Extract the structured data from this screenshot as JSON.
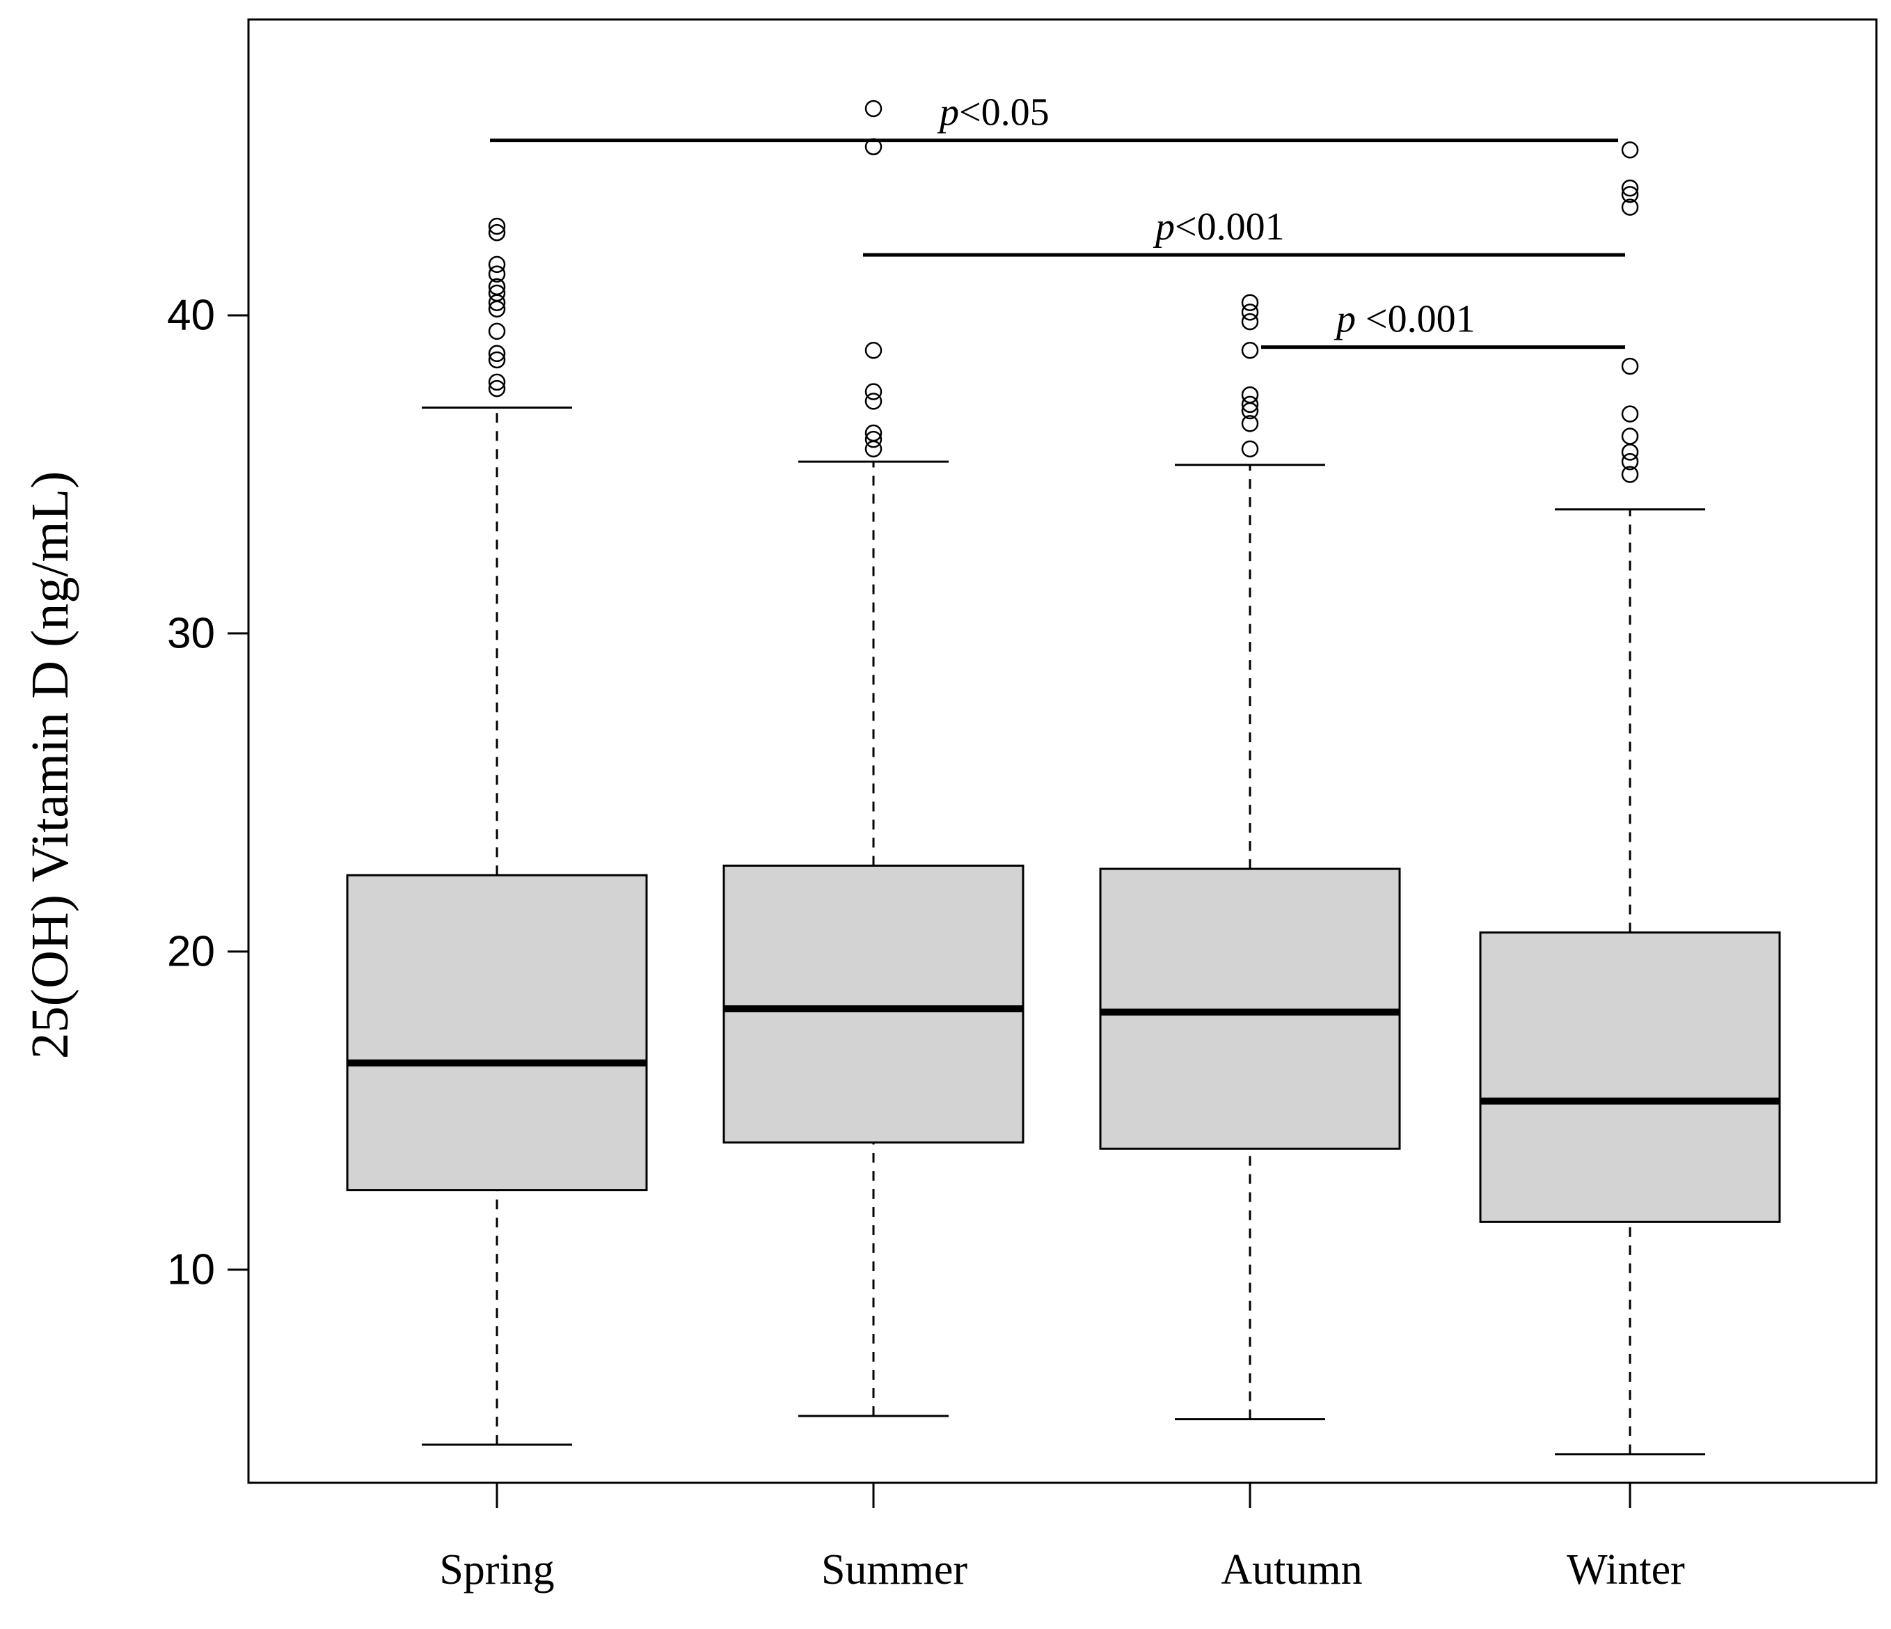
{
  "chart_data": {
    "type": "box",
    "title": "",
    "xlabel": "",
    "ylabel": "25(OH) Vitamin D (ng/mL)",
    "ylim": [
      3.3,
      49.3
    ],
    "yticks": [
      10,
      20,
      30,
      40
    ],
    "yticklabels": [
      "10",
      "20",
      "30",
      "40"
    ],
    "categories": [
      "Spring",
      "Summer",
      "Autumn",
      "Winter"
    ],
    "boxes": [
      {
        "name": "Spring",
        "whisker_low": 4.5,
        "q1": 12.5,
        "median": 16.5,
        "q3": 22.4,
        "whisker_high": 37.1,
        "outliers": [
          37.7,
          37.9,
          38.6,
          38.8,
          39.5,
          40.2,
          40.4,
          40.7,
          40.9,
          41.3,
          41.6,
          42.6,
          42.8
        ]
      },
      {
        "name": "Summer",
        "whisker_low": 5.4,
        "q1": 14.0,
        "median": 18.2,
        "q3": 22.7,
        "whisker_high": 35.4,
        "outliers": [
          35.8,
          36.1,
          36.3,
          37.3,
          37.6,
          38.9,
          45.3,
          46.5
        ]
      },
      {
        "name": "Autumn",
        "whisker_low": 5.3,
        "q1": 13.8,
        "median": 18.1,
        "q3": 22.6,
        "whisker_high": 35.3,
        "outliers": [
          35.8,
          36.6,
          37.0,
          37.2,
          37.5,
          38.9,
          39.8,
          40.1,
          40.4
        ]
      },
      {
        "name": "Winter",
        "whisker_low": 4.2,
        "q1": 11.5,
        "median": 15.3,
        "q3": 20.6,
        "whisker_high": 33.9,
        "outliers": [
          35.0,
          35.4,
          35.7,
          36.2,
          36.9,
          38.4,
          43.4,
          43.8,
          44.0,
          45.2
        ]
      }
    ],
    "comparisons": [
      {
        "from": "Spring",
        "to": "Winter",
        "y": 45.5,
        "label_italic": "p",
        "label_rest": "<0.05"
      },
      {
        "from": "Summer",
        "to": "Winter",
        "y": 41.9,
        "label_italic": "p",
        "label_rest": "<0.001"
      },
      {
        "from": "Autumn",
        "to": "Winter",
        "y": 39.0,
        "label_italic": "p",
        "label_rest": " <0.001"
      }
    ],
    "colors": {
      "box_fill": "#d3d3d3",
      "stroke": "#000000",
      "background": "#ffffff"
    }
  }
}
